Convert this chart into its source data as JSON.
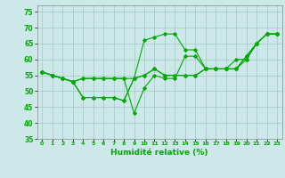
{
  "xlabel": "Humidité relative (%)",
  "xlim": [
    -0.5,
    23.5
  ],
  "ylim": [
    35,
    77
  ],
  "yticks": [
    35,
    40,
    45,
    50,
    55,
    60,
    65,
    70,
    75
  ],
  "xticks": [
    0,
    1,
    2,
    3,
    4,
    5,
    6,
    7,
    8,
    9,
    10,
    11,
    12,
    13,
    14,
    15,
    16,
    17,
    18,
    19,
    20,
    21,
    22,
    23
  ],
  "bg_color": "#cce8e8",
  "grid_color": "#aacccc",
  "line_color": "#00aa00",
  "series": [
    [
      56,
      55,
      54,
      53,
      54,
      54,
      54,
      54,
      54,
      43,
      51,
      55,
      54,
      54,
      61,
      61,
      57,
      57,
      57,
      60,
      60,
      65,
      68,
      68
    ],
    [
      56,
      55,
      54,
      53,
      48,
      48,
      48,
      48,
      47,
      54,
      66,
      67,
      68,
      68,
      63,
      63,
      57,
      57,
      57,
      57,
      60,
      65,
      68,
      68
    ],
    [
      56,
      55,
      54,
      53,
      48,
      48,
      48,
      48,
      47,
      54,
      55,
      57,
      55,
      55,
      55,
      55,
      57,
      57,
      57,
      57,
      61,
      65,
      68,
      68
    ],
    [
      56,
      55,
      54,
      53,
      54,
      54,
      54,
      54,
      54,
      54,
      55,
      57,
      55,
      55,
      55,
      55,
      57,
      57,
      57,
      57,
      61,
      65,
      68,
      68
    ]
  ]
}
